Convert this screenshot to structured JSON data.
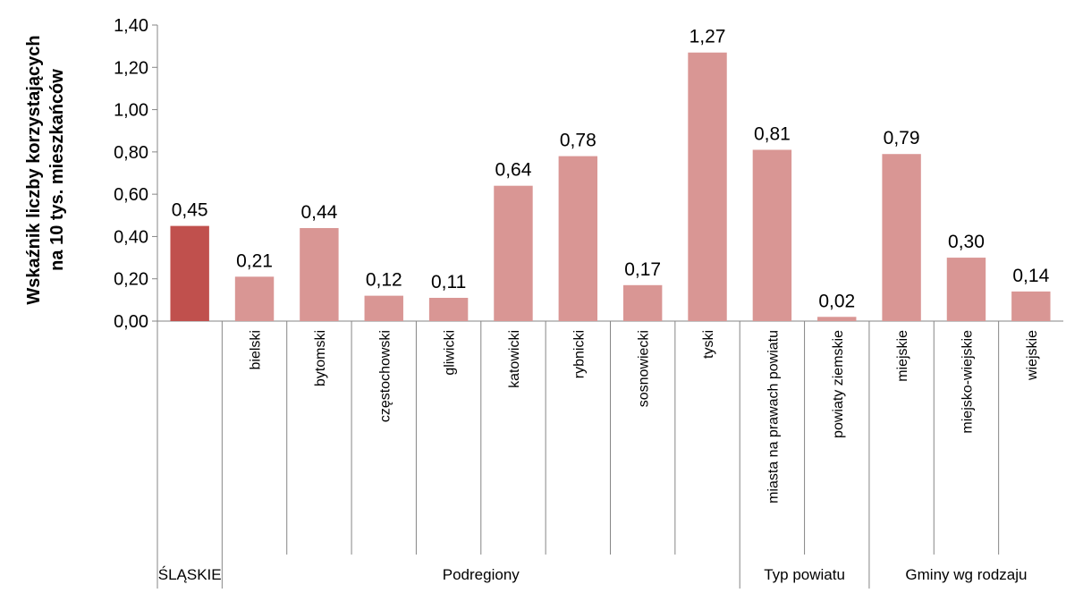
{
  "chart_data": {
    "type": "bar",
    "ylabel_line1": "Wskaźnik liczby korzystających",
    "ylabel_line2": "na 10 tys. mieszkańców",
    "ylim": [
      0,
      1.4
    ],
    "yticks": [
      "0,00",
      "0,20",
      "0,40",
      "0,60",
      "0,80",
      "1,00",
      "1,20",
      "1,40"
    ],
    "ytick_values": [
      0,
      0.2,
      0.4,
      0.6,
      0.8,
      1.0,
      1.2,
      1.4
    ],
    "grid": false,
    "categories": [
      "",
      "bielski",
      "bytomski",
      "częstochowski",
      "gliwicki",
      "katowicki",
      "rybnicki",
      "sosnowiecki",
      "tyski",
      "miasta na prawach powiatu",
      "powiaty ziemskie",
      "miejskie",
      "miejsko-wiejskie",
      "wiejskie"
    ],
    "values": [
      0.45,
      0.21,
      0.44,
      0.12,
      0.11,
      0.64,
      0.78,
      0.17,
      1.27,
      0.81,
      0.02,
      0.79,
      0.3,
      0.14
    ],
    "value_labels": [
      "0,45",
      "0,21",
      "0,44",
      "0,12",
      "0,11",
      "0,64",
      "0,78",
      "0,17",
      "1,27",
      "0,81",
      "0,02",
      "0,79",
      "0,30",
      "0,14"
    ],
    "groups": [
      {
        "label": "ŚLĄSKIE",
        "start": 0,
        "end": 0
      },
      {
        "label": "Podregiony",
        "start": 1,
        "end": 8
      },
      {
        "label": "Typ powiatu",
        "start": 9,
        "end": 10
      },
      {
        "label": "Gminy wg rodzaju",
        "start": 11,
        "end": 13
      }
    ],
    "colors": {
      "highlight": "#c0504d",
      "bar": "#d99694",
      "axis": "#868686",
      "text": "#000000"
    }
  }
}
